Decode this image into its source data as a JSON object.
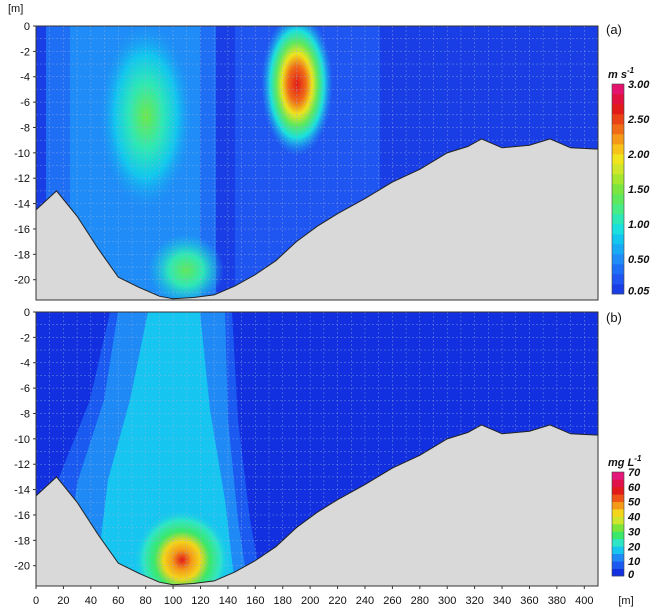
{
  "chart_data": [
    {
      "type": "heatmap",
      "panel_label": "(a)",
      "y_unit_label": "[m]",
      "x_unit_label": "",
      "xlim": [
        0,
        410
      ],
      "ylim": [
        -21.6,
        0
      ],
      "yticks": [
        "0",
        "-2",
        "-4",
        "-6",
        "-8",
        "-10",
        "-12",
        "-14",
        "-16",
        "-18",
        "-20"
      ],
      "ytick_values": [
        0,
        -2,
        -4,
        -6,
        -8,
        -10,
        -12,
        -14,
        -16,
        -18,
        -20
      ],
      "grid": true,
      "colorbar": {
        "title": "m s",
        "title_superscript": "-1",
        "tick_labels": [
          "3.00",
          "2.50",
          "2.00",
          "1.50",
          "1.00",
          "0.50",
          "0.05"
        ],
        "tick_values": [
          3.0,
          2.5,
          2.0,
          1.5,
          1.0,
          0.5,
          0.05
        ],
        "colors": [
          "#1a3ee6",
          "#1f55f0",
          "#1e6ff5",
          "#1f8cf7",
          "#19aaf5",
          "#12c6ef",
          "#1ae0df",
          "#2ee8b5",
          "#48ec87",
          "#5de85e",
          "#7ae63f",
          "#a6e62f",
          "#cfe62a",
          "#efe41d",
          "#f7c21a",
          "#f59a18",
          "#f06c17",
          "#e84216",
          "#e11a1a",
          "#e0113f",
          "#e4146e"
        ]
      },
      "bed_profile": [
        {
          "x": 0,
          "depth": -14.5
        },
        {
          "x": 15,
          "depth": -13.0
        },
        {
          "x": 30,
          "depth": -15.0
        },
        {
          "x": 45,
          "depth": -17.5
        },
        {
          "x": 60,
          "depth": -19.8
        },
        {
          "x": 75,
          "depth": -20.6
        },
        {
          "x": 90,
          "depth": -21.3
        },
        {
          "x": 100,
          "depth": -21.5
        },
        {
          "x": 115,
          "depth": -21.4
        },
        {
          "x": 130,
          "depth": -21.2
        },
        {
          "x": 145,
          "depth": -20.5
        },
        {
          "x": 160,
          "depth": -19.6
        },
        {
          "x": 175,
          "depth": -18.5
        },
        {
          "x": 190,
          "depth": -17.0
        },
        {
          "x": 205,
          "depth": -15.8
        },
        {
          "x": 220,
          "depth": -14.8
        },
        {
          "x": 240,
          "depth": -13.6
        },
        {
          "x": 260,
          "depth": -12.3
        },
        {
          "x": 280,
          "depth": -11.3
        },
        {
          "x": 300,
          "depth": -10.0
        },
        {
          "x": 315,
          "depth": -9.5
        },
        {
          "x": 325,
          "depth": -8.9
        },
        {
          "x": 340,
          "depth": -9.6
        },
        {
          "x": 360,
          "depth": -9.4
        },
        {
          "x": 375,
          "depth": -8.9
        },
        {
          "x": 390,
          "depth": -9.6
        },
        {
          "x": 408,
          "depth": -9.7
        }
      ],
      "features": [
        {
          "kind": "velocity-core",
          "x_center": 80,
          "depth_center": -6.5,
          "x_halfwidth": 24,
          "depth_halfwidth": 6.5,
          "peak_value": 1.1
        },
        {
          "kind": "velocity-core",
          "x_center": 110,
          "depth_center": -18.5,
          "x_halfwidth": 20,
          "depth_halfwidth": 3.5,
          "peak_value": 1.0
        },
        {
          "kind": "velocity-core",
          "x_center": 193,
          "depth_center": -4.5,
          "x_halfwidth": 15,
          "depth_halfwidth": 3.5,
          "peak_value": 2.8
        }
      ]
    },
    {
      "type": "heatmap",
      "panel_label": "(b)",
      "y_unit_label": "",
      "x_unit_label": "[m]",
      "xlim": [
        0,
        410
      ],
      "ylim": [
        -21.6,
        0
      ],
      "xticks": [
        "0",
        "20",
        "40",
        "60",
        "80",
        "100",
        "120",
        "140",
        "160",
        "180",
        "200",
        "220",
        "240",
        "260",
        "280",
        "300",
        "320",
        "340",
        "360",
        "380",
        "400"
      ],
      "xtick_values": [
        0,
        20,
        40,
        60,
        80,
        100,
        120,
        140,
        160,
        180,
        200,
        220,
        240,
        260,
        280,
        300,
        320,
        340,
        360,
        380,
        400
      ],
      "yticks": [
        "0",
        "-2",
        "-4",
        "-6",
        "-8",
        "-10",
        "-12",
        "-14",
        "-16",
        "-18",
        "-20"
      ],
      "ytick_values": [
        0,
        -2,
        -4,
        -6,
        -8,
        -10,
        -12,
        -14,
        -16,
        -18,
        -20
      ],
      "grid": true,
      "colorbar": {
        "title": "mg L",
        "title_superscript": "-1",
        "tick_labels": [
          "70",
          "60",
          "50",
          "40",
          "30",
          "20",
          "10",
          "0"
        ],
        "tick_values": [
          70,
          60,
          50,
          40,
          30,
          20,
          10,
          0
        ],
        "colors": [
          "#1230e0",
          "#1a5af0",
          "#1f8af5",
          "#16c6f0",
          "#2ee6c6",
          "#3ae86a",
          "#7be53a",
          "#cde52a",
          "#f3d51b",
          "#f59a18",
          "#ee5516",
          "#e21b1b",
          "#e0134a",
          "#e4177a"
        ]
      },
      "bed_profile": [
        {
          "x": 0,
          "depth": -14.5
        },
        {
          "x": 15,
          "depth": -13.0
        },
        {
          "x": 30,
          "depth": -15.0
        },
        {
          "x": 45,
          "depth": -17.5
        },
        {
          "x": 60,
          "depth": -19.8
        },
        {
          "x": 75,
          "depth": -20.6
        },
        {
          "x": 90,
          "depth": -21.3
        },
        {
          "x": 100,
          "depth": -21.5
        },
        {
          "x": 115,
          "depth": -21.4
        },
        {
          "x": 130,
          "depth": -21.2
        },
        {
          "x": 145,
          "depth": -20.5
        },
        {
          "x": 160,
          "depth": -19.6
        },
        {
          "x": 175,
          "depth": -18.5
        },
        {
          "x": 190,
          "depth": -17.0
        },
        {
          "x": 205,
          "depth": -15.8
        },
        {
          "x": 220,
          "depth": -14.8
        },
        {
          "x": 240,
          "depth": -13.6
        },
        {
          "x": 260,
          "depth": -12.3
        },
        {
          "x": 280,
          "depth": -11.3
        },
        {
          "x": 300,
          "depth": -10.0
        },
        {
          "x": 315,
          "depth": -9.5
        },
        {
          "x": 325,
          "depth": -8.9
        },
        {
          "x": 340,
          "depth": -9.6
        },
        {
          "x": 360,
          "depth": -9.4
        },
        {
          "x": 375,
          "depth": -8.9
        },
        {
          "x": 390,
          "depth": -9.6
        },
        {
          "x": 408,
          "depth": -9.7
        }
      ],
      "features": [
        {
          "kind": "concentration-plume",
          "x_left_top": 75,
          "x_right_top": 165,
          "x_left_bottom": 55,
          "x_right_bottom": 170,
          "value": 12
        },
        {
          "kind": "concentration-core",
          "x_center": 110,
          "depth_center": -19.5,
          "x_halfwidth": 22,
          "depth_halfwidth": 3.0,
          "peak_value": 60
        }
      ]
    }
  ]
}
